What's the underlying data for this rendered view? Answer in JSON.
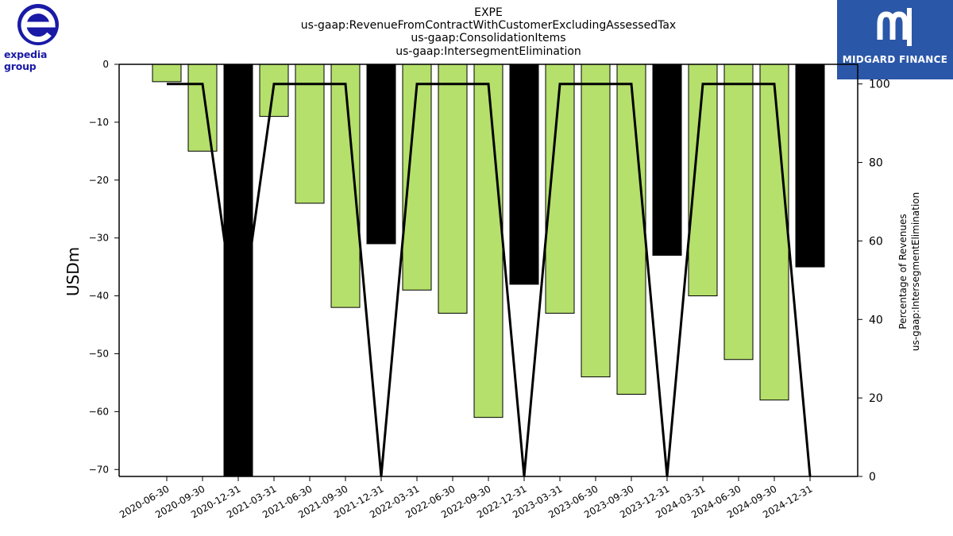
{
  "logos": {
    "left_text": "expedia group",
    "right_text": "MIDGARD FINANCE"
  },
  "chart_data": {
    "type": "bar",
    "title_lines": [
      "EXPE",
      "us-gaap:RevenueFromContractWithCustomerExcludingAssessedTax",
      "us-gaap:ConsolidationItems",
      "us-gaap:IntersegmentElimination"
    ],
    "ylabel": "USDm",
    "y2label_lines": [
      "Percentage of Revenues",
      "us-gaap:IntersegmentElimination"
    ],
    "ylim": [
      -71.2,
      0
    ],
    "y2lim": [
      0,
      105
    ],
    "yticks": [
      0,
      -10,
      -20,
      -30,
      -40,
      -50,
      -60,
      -70
    ],
    "y2ticks": [
      0,
      20,
      40,
      60,
      80,
      100
    ],
    "categories": [
      "2020-06-30",
      "2020-09-30",
      "2020-12-31",
      "2021-03-31",
      "2021-06-30",
      "2021-09-30",
      "2021-12-31",
      "2022-03-31",
      "2022-06-30",
      "2022-09-30",
      "2022-12-31",
      "2023-03-31",
      "2023-06-30",
      "2023-09-30",
      "2023-12-31",
      "2024-03-31",
      "2024-06-30",
      "2024-09-30",
      "2024-12-31"
    ],
    "values": [
      -3,
      -15,
      -71.2,
      -9,
      -24,
      -42,
      -31,
      -39,
      -43,
      -61,
      -38,
      -43,
      -54,
      -57,
      -33,
      -40,
      -51,
      -58,
      -35
    ],
    "bar_kind": [
      "quarter",
      "quarter",
      "annual",
      "quarter",
      "quarter",
      "quarter",
      "annual",
      "quarter",
      "quarter",
      "quarter",
      "annual",
      "quarter",
      "quarter",
      "quarter",
      "annual",
      "quarter",
      "quarter",
      "quarter",
      "annual"
    ],
    "line_values": [
      100,
      100,
      35,
      100,
      100,
      100,
      0,
      100,
      100,
      100,
      0,
      100,
      100,
      100,
      0,
      100,
      100,
      100,
      0
    ],
    "colors": {
      "quarter_bar": "#b5e06c",
      "annual_bar": "#000000",
      "line": "#000000"
    },
    "grid": false
  }
}
